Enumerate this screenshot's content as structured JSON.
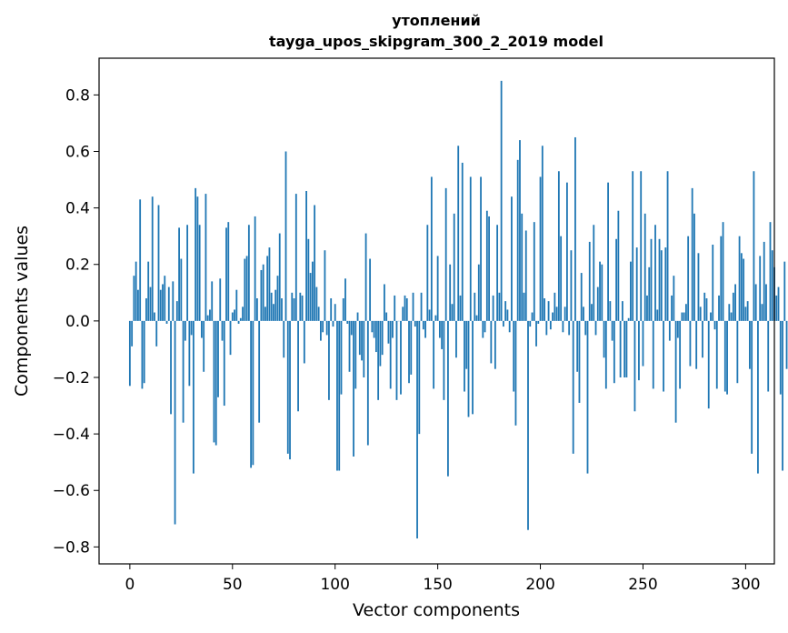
{
  "chart_data": {
    "type": "bar",
    "title_line1": "утоплений",
    "title_line2": "tayga_upos_skipgram_300_2_2019 model",
    "xlabel": "Vector components",
    "ylabel": "Components values",
    "xlim": [
      -15,
      314
    ],
    "ylim": [
      -0.86,
      0.93
    ],
    "xticks": [
      0,
      50,
      100,
      150,
      200,
      250,
      300
    ],
    "yticks": [
      -0.8,
      -0.6,
      -0.4,
      -0.2,
      0.0,
      0.2,
      0.4,
      0.6,
      0.8
    ],
    "ytick_labels": [
      "−0.8",
      "−0.6",
      "−0.4",
      "−0.2",
      "0.0",
      "0.2",
      "0.4",
      "0.6",
      "0.8"
    ],
    "xtick_labels": [
      "0",
      "50",
      "100",
      "150",
      "200",
      "250",
      "300"
    ],
    "bar_color": "#1f77b4",
    "values": [
      -0.23,
      -0.09,
      0.16,
      0.21,
      0.11,
      0.43,
      -0.24,
      -0.22,
      0.08,
      0.21,
      0.12,
      0.44,
      0.03,
      -0.09,
      0.41,
      0.11,
      0.13,
      0.16,
      -0.01,
      0.12,
      -0.33,
      0.14,
      -0.72,
      0.07,
      0.33,
      0.22,
      -0.36,
      -0.07,
      0.34,
      -0.23,
      -0.05,
      -0.54,
      0.47,
      0.44,
      0.34,
      -0.06,
      -0.18,
      0.45,
      0.02,
      0.04,
      0.14,
      -0.43,
      -0.44,
      -0.27,
      0.15,
      -0.07,
      -0.3,
      0.33,
      0.35,
      -0.12,
      0.03,
      0.04,
      0.11,
      -0.01,
      0.01,
      0.05,
      0.22,
      0.23,
      0.34,
      -0.52,
      -0.51,
      0.37,
      0.08,
      -0.36,
      0.18,
      0.2,
      0.05,
      0.23,
      0.26,
      0.1,
      0.06,
      0.11,
      0.16,
      0.31,
      0.08,
      -0.13,
      0.6,
      -0.47,
      -0.49,
      0.1,
      0.08,
      0.45,
      -0.32,
      0.1,
      0.09,
      -0.15,
      0.46,
      0.29,
      0.17,
      0.21,
      0.41,
      0.12,
      0.05,
      -0.07,
      -0.04,
      0.25,
      -0.05,
      -0.28,
      0.08,
      -0.02,
      0.06,
      -0.53,
      -0.53,
      -0.26,
      0.08,
      0.15,
      -0.01,
      -0.18,
      -0.05,
      -0.48,
      -0.24,
      0.03,
      -0.12,
      -0.14,
      -0.2,
      0.31,
      -0.44,
      0.22,
      -0.04,
      -0.06,
      -0.11,
      -0.28,
      -0.16,
      -0.12,
      0.13,
      0.03,
      -0.08,
      -0.24,
      -0.06,
      0.09,
      -0.28,
      0.0,
      -0.26,
      0.05,
      0.09,
      0.08,
      -0.22,
      -0.19,
      0.1,
      -0.02,
      -0.77,
      -0.4,
      0.1,
      -0.03,
      -0.06,
      0.34,
      0.04,
      0.51,
      -0.24,
      0.02,
      0.23,
      -0.06,
      -0.1,
      -0.28,
      0.47,
      -0.55,
      0.2,
      0.06,
      0.38,
      -0.13,
      0.62,
      0.09,
      0.56,
      -0.25,
      -0.17,
      -0.34,
      0.51,
      -0.33,
      0.1,
      0.02,
      0.2,
      0.51,
      -0.06,
      -0.04,
      0.39,
      0.37,
      -0.15,
      0.09,
      -0.17,
      0.34,
      0.1,
      0.85,
      -0.02,
      0.07,
      0.04,
      -0.04,
      0.44,
      -0.25,
      -0.37,
      0.57,
      0.64,
      0.38,
      0.1,
      0.32,
      -0.74,
      -0.02,
      0.03,
      0.35,
      -0.09,
      -0.01,
      0.51,
      0.62,
      0.08,
      -0.05,
      0.07,
      -0.03,
      0.03,
      0.1,
      0.05,
      0.53,
      0.3,
      -0.04,
      0.05,
      0.49,
      -0.05,
      0.25,
      -0.47,
      0.65,
      -0.18,
      -0.29,
      0.17,
      0.05,
      -0.05,
      -0.54,
      0.28,
      0.06,
      0.34,
      -0.05,
      0.12,
      0.21,
      0.2,
      -0.13,
      -0.24,
      0.49,
      0.07,
      -0.07,
      -0.22,
      0.29,
      0.39,
      -0.2,
      0.07,
      -0.2,
      -0.2,
      0.01,
      0.21,
      0.53,
      -0.32,
      0.26,
      -0.21,
      0.53,
      -0.16,
      0.38,
      0.09,
      0.19,
      0.29,
      -0.24,
      0.34,
      0.04,
      0.29,
      0.25,
      -0.25,
      0.26,
      0.53,
      -0.07,
      0.09,
      0.16,
      -0.36,
      -0.06,
      -0.24,
      0.03,
      0.03,
      0.06,
      0.3,
      -0.16,
      0.47,
      0.38,
      -0.17,
      0.24,
      0.05,
      -0.13,
      0.1,
      0.08,
      -0.31,
      0.03,
      0.27,
      -0.03,
      -0.24,
      0.09,
      0.3,
      0.35,
      -0.25,
      -0.26,
      0.06,
      0.03,
      0.1,
      0.13,
      -0.22,
      0.3,
      0.24,
      0.22,
      0.05,
      0.07,
      -0.17,
      -0.47,
      0.53,
      0.13,
      -0.54,
      0.23,
      0.06,
      0.28,
      0.13,
      -0.25,
      0.35,
      0.25,
      0.19,
      0.09,
      0.12,
      -0.26,
      -0.53,
      0.21,
      -0.17
    ]
  }
}
